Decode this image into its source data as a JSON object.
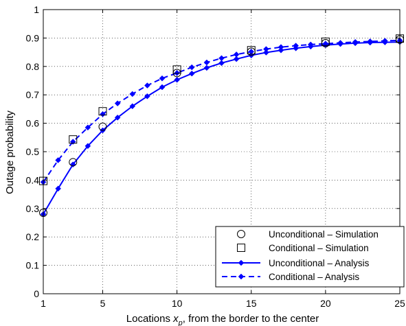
{
  "chart_data": {
    "type": "line",
    "title": "",
    "xlabel_main": "Locations  ",
    "xlabel_var": "x",
    "xlabel_sub": "p",
    "xlabel_rest": ", from the border to the center",
    "ylabel": "Outage probability",
    "xlim": [
      1,
      25
    ],
    "ylim": [
      0,
      1
    ],
    "xticks": [
      1,
      5,
      10,
      15,
      20,
      25
    ],
    "yticks": [
      0,
      0.1,
      0.2,
      0.3,
      0.4,
      0.5,
      0.6,
      0.7,
      0.8,
      0.9,
      1
    ],
    "ytick_labels": [
      "0",
      "0.1",
      "0.2",
      "0.3",
      "0.4",
      "0.5",
      "0.6",
      "0.7",
      "0.8",
      "0.9",
      "1"
    ],
    "grid": true,
    "legend_position": "bottom-right",
    "series": [
      {
        "name": "Unconditional – Simulation",
        "style": "marker",
        "marker": "circle",
        "color": "#000000",
        "x": [
          1,
          3,
          5,
          10,
          15,
          20,
          25
        ],
        "y": [
          0.285,
          0.463,
          0.588,
          0.777,
          0.852,
          0.882,
          0.895
        ]
      },
      {
        "name": "Conditional – Simulation",
        "style": "marker",
        "marker": "square",
        "color": "#000000",
        "x": [
          1,
          3,
          5,
          10,
          15,
          20,
          25
        ],
        "y": [
          0.397,
          0.543,
          0.642,
          0.789,
          0.857,
          0.887,
          0.898
        ]
      },
      {
        "name": "Unconditional – Analysis",
        "style": "solid",
        "marker": "diamond",
        "color": "#0000ff",
        "x": [
          1,
          2,
          3,
          4,
          5,
          6,
          7,
          8,
          9,
          10,
          11,
          12,
          13,
          14,
          15,
          16,
          17,
          18,
          19,
          20,
          21,
          22,
          23,
          24,
          25
        ],
        "y": [
          0.28,
          0.37,
          0.455,
          0.52,
          0.575,
          0.62,
          0.66,
          0.695,
          0.727,
          0.753,
          0.775,
          0.795,
          0.812,
          0.826,
          0.839,
          0.849,
          0.857,
          0.864,
          0.87,
          0.875,
          0.879,
          0.882,
          0.884,
          0.885,
          0.886
        ]
      },
      {
        "name": "Conditional – Analysis",
        "style": "dashed",
        "marker": "diamond",
        "color": "#0000ff",
        "x": [
          1,
          2,
          3,
          4,
          5,
          6,
          7,
          8,
          9,
          10,
          11,
          12,
          13,
          14,
          15,
          16,
          17,
          18,
          19,
          20,
          21,
          22,
          23,
          24,
          25
        ],
        "y": [
          0.393,
          0.47,
          0.535,
          0.585,
          0.632,
          0.67,
          0.703,
          0.733,
          0.758,
          0.777,
          0.797,
          0.814,
          0.829,
          0.842,
          0.852,
          0.861,
          0.868,
          0.873,
          0.877,
          0.88,
          0.883,
          0.886,
          0.888,
          0.89,
          0.892
        ]
      }
    ]
  }
}
